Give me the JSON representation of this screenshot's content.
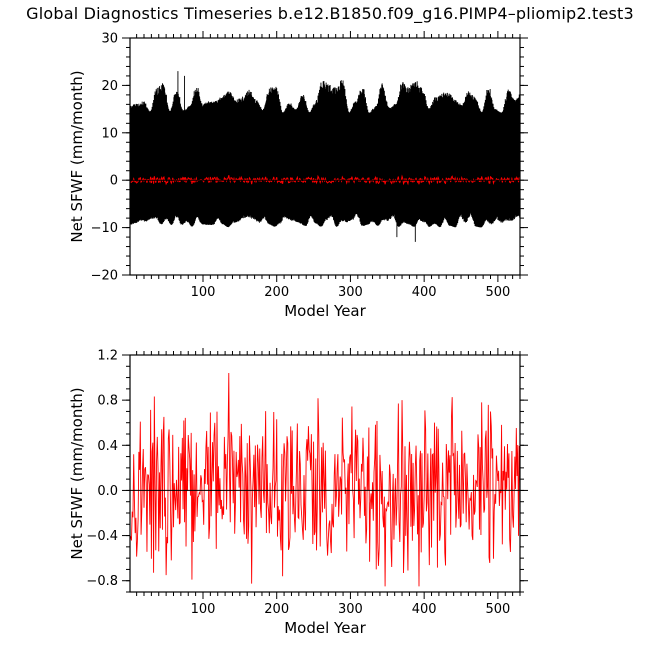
{
  "figure": {
    "title": "Global Diagnostics Timeseries b.e12.B1850.f09_g16.PIMP4–pliomip2.test3"
  },
  "chart_data": [
    {
      "type": "line",
      "xlabel": "Model Year",
      "ylabel": "Net SFWF (mm/month)",
      "xlim": [
        1,
        530
      ],
      "ylim": [
        -20,
        30
      ],
      "xticks": [
        100,
        200,
        300,
        400,
        500
      ],
      "yticks": [
        -20,
        -10,
        0,
        10,
        20,
        30
      ],
      "ytick_labels": [
        "−20",
        "−10",
        "0",
        "10",
        "20",
        "30"
      ],
      "grid": false,
      "zero_line": true,
      "series": [
        {
          "name": "",
          "color": "#000000",
          "kind": "monthly",
          "typical_max": [
            14,
            21
          ],
          "typical_min": [
            -10,
            -7
          ],
          "peak_values": [
            {
              "x": 66,
              "y": 23
            },
            {
              "x": 75,
              "y": 22
            },
            {
              "x": 388,
              "y": -13
            },
            {
              "x": 363,
              "y": -12
            }
          ]
        },
        {
          "name": "",
          "color": "#ff0000",
          "kind": "annual_mean",
          "range": [
            -0.85,
            1.05
          ]
        }
      ]
    },
    {
      "type": "line",
      "xlabel": "Model Year",
      "ylabel": "Net SFWF (mm/month)",
      "xlim": [
        1,
        530
      ],
      "ylim": [
        -0.9,
        1.2
      ],
      "xticks": [
        100,
        200,
        300,
        400,
        500
      ],
      "yticks": [
        -0.8,
        -0.4,
        0.0,
        0.4,
        0.8,
        1.2
      ],
      "ytick_labels": [
        "−0.8",
        "−0.4",
        "0.0",
        "0.4",
        "0.8",
        "1.2"
      ],
      "grid": false,
      "zero_line": true,
      "series": [
        {
          "name": "",
          "color": "#ff0000",
          "kind": "annual_mean",
          "extremes": [
            {
              "x": 135,
              "y": 1.04
            },
            {
              "x": 110,
              "y": 0.69
            },
            {
              "x": 370,
              "y": 0.8
            },
            {
              "x": 478,
              "y": 0.78
            },
            {
              "x": 393,
              "y": -0.86
            },
            {
              "x": 85,
              "y": -0.79
            },
            {
              "x": 208,
              "y": -0.76
            },
            {
              "x": 335,
              "y": -0.7
            },
            {
              "x": 57,
              "y": -0.62
            }
          ]
        }
      ]
    }
  ]
}
